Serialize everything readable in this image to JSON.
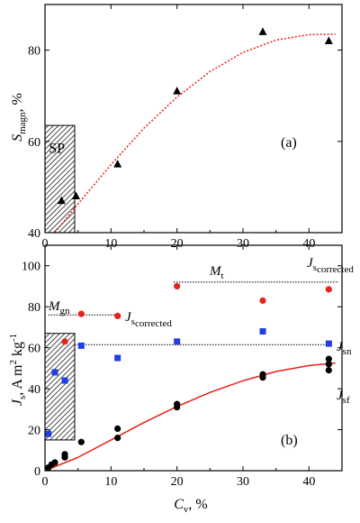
{
  "chart_data": [
    {
      "type": "scatter",
      "panel_label": "(a)",
      "xlim": [
        0,
        45
      ],
      "ylim": [
        40,
        90
      ],
      "xticks": [
        0,
        10,
        20,
        30,
        40
      ],
      "yticks": [
        40,
        60,
        80
      ],
      "ylabel_main": "S",
      "ylabel_sub": "magn",
      "ylabel_suffix": ", %",
      "hatched_region": {
        "x": [
          0,
          4.5
        ],
        "y": [
          40,
          63.5
        ],
        "label": "SP"
      },
      "series": [
        {
          "marker": "triangle",
          "color": "#000000",
          "x": [
            2.5,
            4.7,
            11,
            20,
            33,
            43
          ],
          "y": [
            47,
            48,
            55,
            71,
            84,
            82
          ]
        }
      ],
      "fit": {
        "style": "dotted",
        "color": "#e8211b",
        "x": [
          1.5,
          5,
          10,
          15,
          20,
          25,
          30,
          35,
          40,
          44
        ],
        "y": [
          40,
          46.3,
          54.9,
          62.9,
          69.7,
          75.3,
          79.5,
          82.2,
          83.4,
          83.5
        ]
      }
    },
    {
      "type": "scatter",
      "panel_label": "(b)",
      "xlim": [
        0,
        45
      ],
      "ylim": [
        0,
        110
      ],
      "xticks": [
        0,
        10,
        20,
        30,
        40
      ],
      "yticks": [
        0,
        20,
        40,
        60,
        80,
        100
      ],
      "xlabel_main": "C",
      "xlabel_sub": "v",
      "xlabel_suffix": ", %",
      "ylabel_main": "J",
      "ylabel_sub": "s",
      "ylabel_suffix": ", A m",
      "ylabel_sup1": "2",
      "ylabel_mid": " kg",
      "ylabel_sup2": "-1",
      "hatched_region": {
        "x": [
          0,
          4.5
        ],
        "y": [
          15,
          67
        ]
      },
      "series": [
        {
          "name_main": "J",
          "name_sub": "s",
          "name_sub2": "corrected",
          "marker": "circle",
          "color": "#e8211b",
          "x": [
            3,
            5.5,
            11,
            20,
            33,
            43
          ],
          "y": [
            63,
            76.5,
            75.5,
            90,
            83,
            88.5
          ]
        },
        {
          "name_main": "J",
          "name_sub": "sn",
          "marker": "square",
          "color": "#1f3fe0",
          "x": [
            0.5,
            1.5,
            3,
            5.5,
            11,
            20,
            33,
            43
          ],
          "y": [
            18,
            48,
            44,
            61,
            55,
            63,
            68,
            62
          ]
        },
        {
          "name_main": "J",
          "name_sub": "sf",
          "marker": "circle",
          "color": "#000000",
          "x": [
            0.5,
            1,
            1.5,
            3,
            3,
            5.5,
            11,
            11,
            20,
            20,
            33,
            33,
            43,
            43,
            43
          ],
          "y": [
            1.5,
            3,
            4,
            6.5,
            8,
            14,
            16,
            20.5,
            31,
            32.5,
            45.5,
            47,
            49,
            52,
            54.5
          ]
        }
      ],
      "fit": {
        "style": "solid",
        "color": "#e8211b",
        "x": [
          0,
          5,
          10,
          15,
          20,
          25,
          30,
          35,
          40,
          44
        ],
        "y": [
          0,
          6.5,
          15,
          23.5,
          31.3,
          38.2,
          43.9,
          48.4,
          51.3,
          52.5
        ]
      },
      "reference_lines": [
        {
          "name": "M_gn",
          "y": 76,
          "x": [
            0.5,
            11.5
          ]
        },
        {
          "name": "M_t",
          "y": 92,
          "x": [
            19.5,
            44.5
          ]
        },
        {
          "name": "J_sn level",
          "y": 61.5,
          "x": [
            4.5,
            42.5
          ]
        }
      ],
      "annotations": {
        "mgn_main": "M",
        "mgn_sub": "gn",
        "mt_main": "M",
        "mt_sub": "t",
        "jsc_main": "J",
        "jsc_sub": "s",
        "jsc_sub2": "corrected",
        "jsn_main": "J",
        "jsn_sub": "sn",
        "jsf_main": "J",
        "jsf_sub": "sf"
      }
    }
  ]
}
